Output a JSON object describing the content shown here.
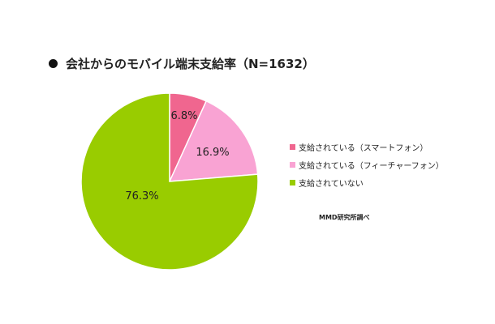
{
  "chart_data": {
    "type": "pie",
    "title": "会社からのモバイル端末支給率（N=1632）",
    "source": "MMD研究所調べ",
    "slices": [
      {
        "label": "支給されている（スマートフォン）",
        "value": 6.8,
        "value_label": "6.8%",
        "color": "#f0668f"
      },
      {
        "label": "支給されている（フィーチャーフォン）",
        "value": 16.9,
        "value_label": "16.9%",
        "color": "#f9a3d3"
      },
      {
        "label": "支給されていない",
        "value": 76.3,
        "value_label": "76.3%",
        "color": "#99cc00"
      }
    ],
    "legend_position": "right",
    "start_angle": "12 o'clock",
    "direction": "clockwise"
  }
}
